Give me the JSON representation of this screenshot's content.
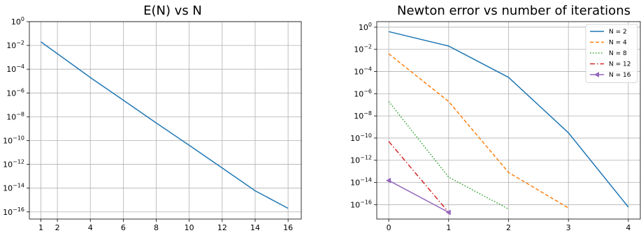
{
  "chart_data": [
    {
      "type": "line",
      "title": "E(N) vs N",
      "xlabel": "",
      "ylabel": "",
      "yscale": "log",
      "xlim": [
        0.3,
        16.8
      ],
      "ylim_exp": [
        -16.6,
        0
      ],
      "xticks": [
        1,
        2,
        4,
        6,
        8,
        10,
        12,
        14,
        16
      ],
      "yticks_exp": [
        0,
        -2,
        -4,
        -6,
        -8,
        -10,
        -12,
        -14,
        -16
      ],
      "grid": true,
      "series": [
        {
          "color": "#1f77b4",
          "style": "solid",
          "x": [
            1,
            2,
            4,
            6,
            8,
            10,
            12,
            14,
            16
          ],
          "y": [
            0.02,
            0.002,
            2e-05,
            2.5e-07,
            3e-09,
            4e-11,
            5e-13,
            6e-15,
            2e-16
          ]
        }
      ]
    },
    {
      "type": "line",
      "title": "Newton error vs number of iterations",
      "xlabel": "",
      "ylabel": "",
      "yscale": "log",
      "xlim": [
        -0.2,
        4.2
      ],
      "ylim_exp": [
        -17.3,
        0.5
      ],
      "xticks": [
        0,
        1,
        2,
        3,
        4
      ],
      "yticks_exp": [
        0,
        -2,
        -4,
        -6,
        -8,
        -10,
        -12,
        -14,
        -16
      ],
      "grid": true,
      "legend_position": "top-right",
      "series": [
        {
          "name": "N = 2",
          "color": "#1f77b4",
          "style": "solid",
          "marker": "",
          "x": [
            0,
            1,
            2,
            3,
            4
          ],
          "y": [
            0.4,
            0.02,
            3e-05,
            3e-10,
            6e-17
          ]
        },
        {
          "name": "N = 4",
          "color": "#ff7f0e",
          "style": "dashed",
          "marker": "",
          "x": [
            0,
            1,
            2,
            3
          ],
          "y": [
            0.004,
            2e-07,
            8e-14,
            5e-17
          ]
        },
        {
          "name": "N = 8",
          "color": "#2ca02c",
          "style": "dotted",
          "marker": "",
          "x": [
            0,
            1,
            2
          ],
          "y": [
            2e-07,
            3e-14,
            4e-17
          ]
        },
        {
          "name": "N = 12",
          "color": "#d62728",
          "style": "dashdot",
          "marker": "",
          "x": [
            0,
            1
          ],
          "y": [
            5e-11,
            2e-17
          ]
        },
        {
          "name": "N = 16",
          "color": "#9467bd",
          "style": "solid",
          "marker": "triangle-left",
          "x": [
            0,
            1
          ],
          "y": [
            1.5e-14,
            2e-17
          ]
        }
      ]
    }
  ]
}
